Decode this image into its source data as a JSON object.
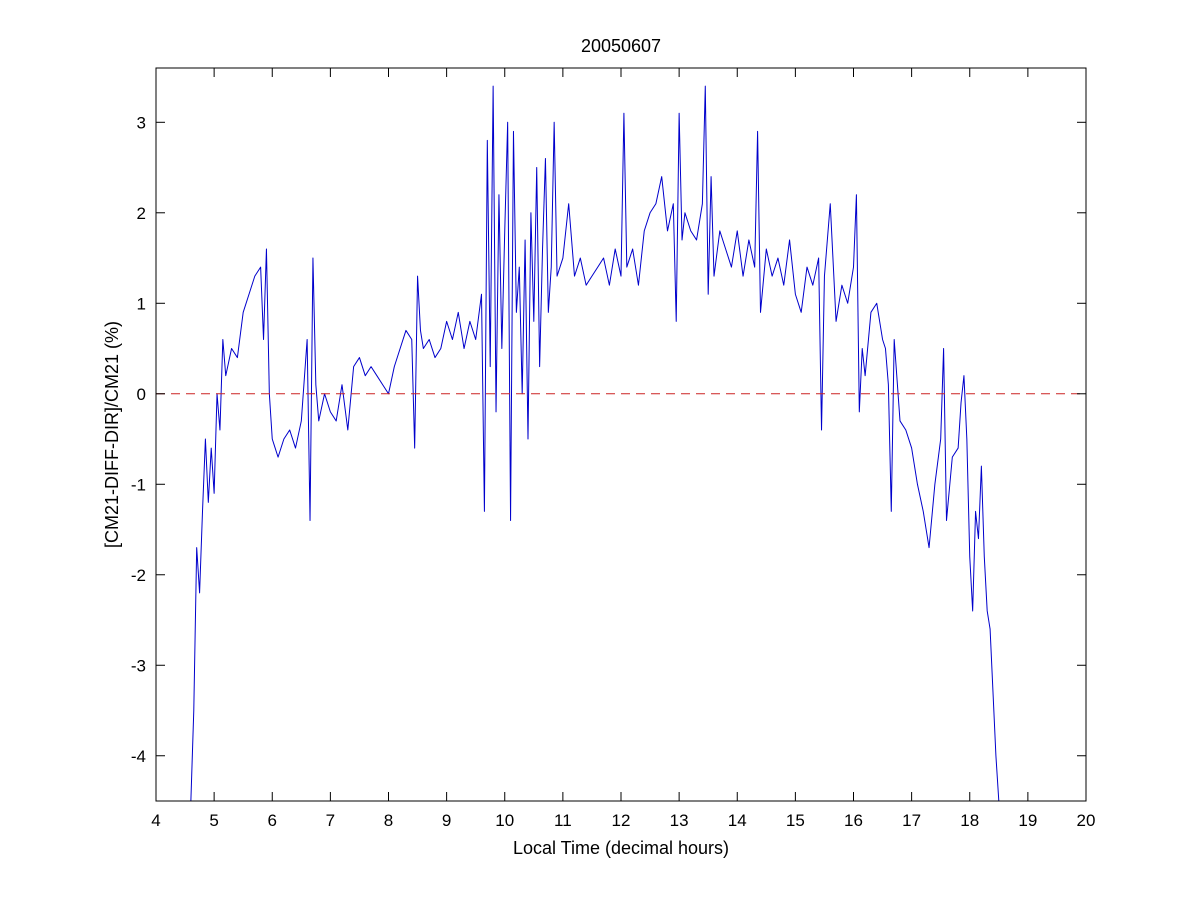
{
  "chart_data": {
    "type": "line",
    "title": "20050607",
    "xlabel": "Local Time (decimal hours)",
    "ylabel": "[CM21-DIFF-DIR]/CM21 (%)",
    "xlim": [
      4,
      20
    ],
    "ylim": [
      -4.5,
      3.6
    ],
    "xticks": [
      4,
      5,
      6,
      7,
      8,
      9,
      10,
      11,
      12,
      13,
      14,
      15,
      16,
      17,
      18,
      19,
      20
    ],
    "yticks": [
      -4,
      -3,
      -2,
      -1,
      0,
      1,
      2,
      3
    ],
    "grid": false,
    "legend": "none",
    "reference_line": {
      "y": 0,
      "style": "dashed",
      "color": "#cc2222"
    },
    "series": [
      {
        "color": "#0000cc",
        "x": [
          4.6,
          4.65,
          4.7,
          4.75,
          4.8,
          4.85,
          4.9,
          4.95,
          5.0,
          5.05,
          5.1,
          5.15,
          5.2,
          5.3,
          5.4,
          5.5,
          5.6,
          5.7,
          5.8,
          5.85,
          5.9,
          5.95,
          6.0,
          6.05,
          6.1,
          6.2,
          6.3,
          6.4,
          6.5,
          6.6,
          6.65,
          6.7,
          6.75,
          6.8,
          6.9,
          7.0,
          7.1,
          7.2,
          7.3,
          7.4,
          7.5,
          7.6,
          7.7,
          7.8,
          7.9,
          8.0,
          8.1,
          8.2,
          8.3,
          8.4,
          8.45,
          8.5,
          8.55,
          8.6,
          8.7,
          8.8,
          8.9,
          9.0,
          9.1,
          9.2,
          9.3,
          9.4,
          9.5,
          9.6,
          9.65,
          9.7,
          9.75,
          9.8,
          9.85,
          9.9,
          9.95,
          10.0,
          10.05,
          10.1,
          10.15,
          10.2,
          10.25,
          10.3,
          10.35,
          10.4,
          10.45,
          10.5,
          10.55,
          10.6,
          10.65,
          10.7,
          10.75,
          10.8,
          10.85,
          10.9,
          11.0,
          11.1,
          11.2,
          11.3,
          11.4,
          11.5,
          11.6,
          11.7,
          11.8,
          11.9,
          12.0,
          12.05,
          12.1,
          12.2,
          12.3,
          12.4,
          12.5,
          12.6,
          12.7,
          12.8,
          12.9,
          12.95,
          13.0,
          13.05,
          13.1,
          13.2,
          13.3,
          13.4,
          13.45,
          13.5,
          13.55,
          13.6,
          13.7,
          13.8,
          13.9,
          14.0,
          14.1,
          14.2,
          14.3,
          14.35,
          14.4,
          14.5,
          14.6,
          14.7,
          14.8,
          14.9,
          15.0,
          15.1,
          15.2,
          15.3,
          15.4,
          15.45,
          15.5,
          15.6,
          15.7,
          15.8,
          15.9,
          16.0,
          16.05,
          16.1,
          16.15,
          16.2,
          16.3,
          16.4,
          16.5,
          16.55,
          16.6,
          16.65,
          16.7,
          16.8,
          16.9,
          17.0,
          17.1,
          17.2,
          17.3,
          17.4,
          17.5,
          17.55,
          17.6,
          17.7,
          17.8,
          17.85,
          17.9,
          17.95,
          18.0,
          18.05,
          18.1,
          18.15,
          18.2,
          18.25,
          18.3,
          18.35,
          18.4,
          18.45,
          18.5
        ],
        "y": [
          -4.5,
          -3.5,
          -1.7,
          -2.2,
          -1.3,
          -0.5,
          -1.2,
          -0.6,
          -1.1,
          0.0,
          -0.4,
          0.6,
          0.2,
          0.5,
          0.4,
          0.9,
          1.1,
          1.3,
          1.4,
          0.6,
          1.6,
          0.0,
          -0.5,
          -0.6,
          -0.7,
          -0.5,
          -0.4,
          -0.6,
          -0.3,
          0.6,
          -1.4,
          1.5,
          0.1,
          -0.3,
          0.0,
          -0.2,
          -0.3,
          0.1,
          -0.4,
          0.3,
          0.4,
          0.2,
          0.3,
          0.2,
          0.1,
          0.0,
          0.3,
          0.5,
          0.7,
          0.6,
          -0.6,
          1.3,
          0.7,
          0.5,
          0.6,
          0.4,
          0.5,
          0.8,
          0.6,
          0.9,
          0.5,
          0.8,
          0.6,
          1.1,
          -1.3,
          2.8,
          0.3,
          3.4,
          -0.2,
          2.2,
          0.5,
          1.8,
          3.0,
          -1.4,
          2.9,
          0.9,
          1.4,
          0.0,
          1.7,
          -0.5,
          2.0,
          0.8,
          2.5,
          0.3,
          1.6,
          2.6,
          0.9,
          1.4,
          3.0,
          1.3,
          1.5,
          2.1,
          1.3,
          1.5,
          1.2,
          1.3,
          1.4,
          1.5,
          1.2,
          1.6,
          1.3,
          3.1,
          1.4,
          1.6,
          1.2,
          1.8,
          2.0,
          2.1,
          2.4,
          1.8,
          2.1,
          0.8,
          3.1,
          1.7,
          2.0,
          1.8,
          1.7,
          2.1,
          3.4,
          1.1,
          2.4,
          1.3,
          1.8,
          1.6,
          1.4,
          1.8,
          1.3,
          1.7,
          1.4,
          2.9,
          0.9,
          1.6,
          1.3,
          1.5,
          1.2,
          1.7,
          1.1,
          0.9,
          1.4,
          1.2,
          1.5,
          -0.4,
          1.3,
          2.1,
          0.8,
          1.2,
          1.0,
          1.4,
          2.2,
          -0.2,
          0.5,
          0.2,
          0.9,
          1.0,
          0.6,
          0.5,
          0.1,
          -1.3,
          0.6,
          -0.3,
          -0.4,
          -0.6,
          -1.0,
          -1.3,
          -1.7,
          -1.0,
          -0.5,
          0.5,
          -1.4,
          -0.7,
          -0.6,
          -0.1,
          0.2,
          -0.5,
          -1.8,
          -2.4,
          -1.3,
          -1.6,
          -0.8,
          -1.8,
          -2.4,
          -2.6,
          -3.3,
          -4.0,
          -4.5
        ]
      }
    ]
  }
}
